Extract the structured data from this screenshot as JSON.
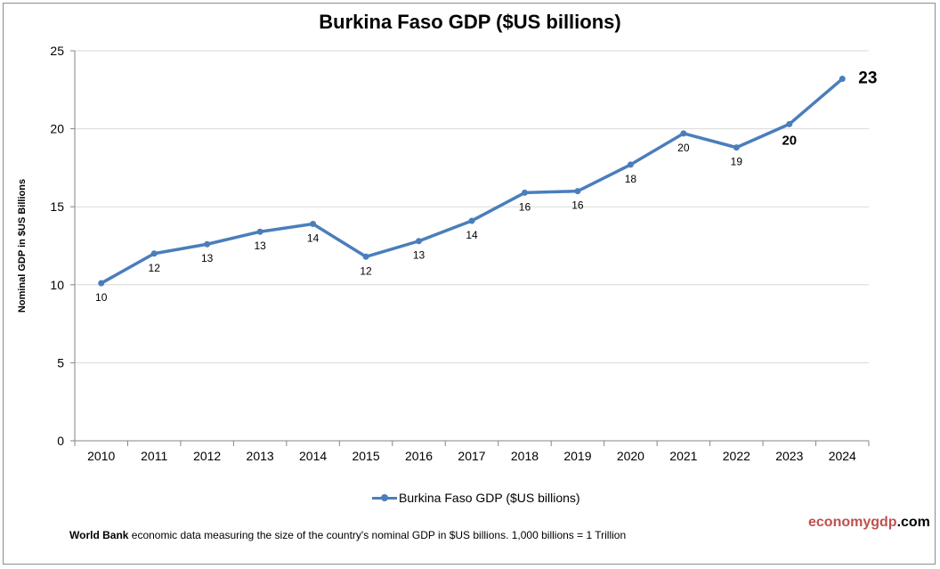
{
  "chart_data": {
    "type": "line",
    "title": "Burkina Faso GDP ($US billions)",
    "ylabel": "Nominal GDP in $US  Billions",
    "xlabel": "",
    "ylim": [
      0,
      25
    ],
    "yticks": [
      0,
      5,
      10,
      15,
      20,
      25
    ],
    "grid": true,
    "legend_position": "bottom",
    "categories": [
      "2010",
      "2011",
      "2012",
      "2013",
      "2014",
      "2015",
      "2016",
      "2017",
      "2018",
      "2019",
      "2020",
      "2021",
      "2022",
      "2023",
      "2024"
    ],
    "series": [
      {
        "name": "Burkina Faso GDP ($US billions)",
        "values": [
          10.1,
          12.0,
          12.6,
          13.4,
          13.9,
          11.8,
          12.8,
          14.1,
          15.9,
          16.0,
          17.7,
          19.7,
          18.8,
          20.3,
          23.2
        ],
        "data_labels": [
          "10",
          "12",
          "13",
          "13",
          "14",
          "12",
          "13",
          "14",
          "16",
          "16",
          "18",
          "20",
          "19",
          "20",
          "23"
        ],
        "color": "#4a7ebb"
      }
    ]
  },
  "footer": {
    "source_bold": "World Bank",
    "source_text": " economic data  measuring the size of the country's nominal  GDP in $US billions. 1,000 billions = 1 Trillion",
    "logo_part1": "economygdp",
    "logo_part2": ".com",
    "logo_color": "#c0504d"
  }
}
